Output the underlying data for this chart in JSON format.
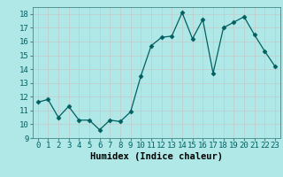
{
  "x": [
    0,
    1,
    2,
    3,
    4,
    5,
    6,
    7,
    8,
    9,
    10,
    11,
    12,
    13,
    14,
    15,
    16,
    17,
    18,
    19,
    20,
    21,
    22,
    23
  ],
  "y": [
    11.6,
    11.8,
    10.5,
    11.3,
    10.3,
    10.3,
    9.6,
    10.3,
    10.2,
    10.9,
    13.5,
    15.7,
    16.3,
    16.4,
    18.1,
    16.2,
    17.6,
    13.7,
    17.0,
    17.4,
    17.8,
    16.5,
    15.3,
    14.2
  ],
  "xlabel": "Humidex (Indice chaleur)",
  "xlim": [
    -0.5,
    23.5
  ],
  "ylim": [
    9,
    18.5
  ],
  "yticks": [
    9,
    10,
    11,
    12,
    13,
    14,
    15,
    16,
    17,
    18
  ],
  "xticks": [
    0,
    1,
    2,
    3,
    4,
    5,
    6,
    7,
    8,
    9,
    10,
    11,
    12,
    13,
    14,
    15,
    16,
    17,
    18,
    19,
    20,
    21,
    22,
    23
  ],
  "line_color": "#006060",
  "marker": "D",
  "marker_size": 2.5,
  "bg_color": "#b0e8e8",
  "grid_color": "#c0d0d0",
  "label_fontsize": 7.5,
  "tick_fontsize": 6.5
}
